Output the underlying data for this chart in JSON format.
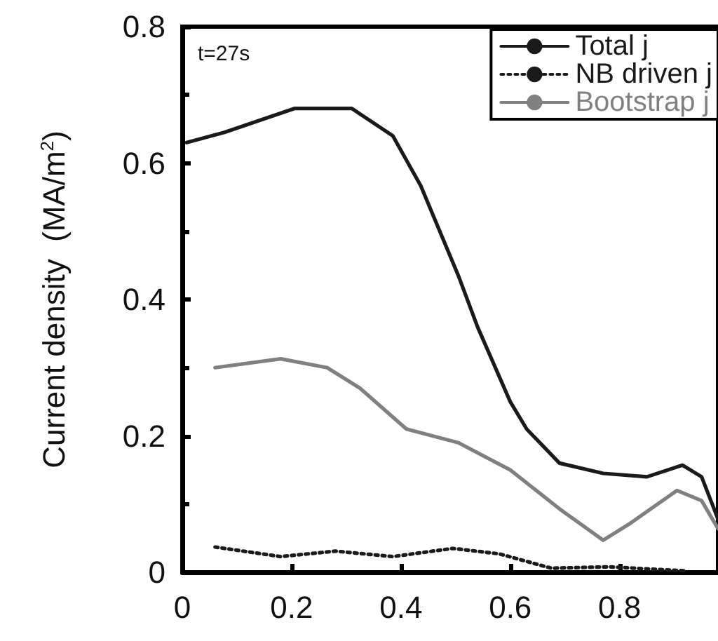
{
  "chart_data": {
    "type": "line",
    "ylabel": "Current density  (MA/m$^{2}$)",
    "xlim": [
      0,
      0.98
    ],
    "xticks": [
      0,
      0.2,
      0.4,
      0.6,
      0.8
    ],
    "ylim": [
      0,
      0.8
    ],
    "yticks": [
      0,
      0.2,
      0.4,
      0.6,
      0.8
    ],
    "legend": "top right",
    "grid": false,
    "marker": "none",
    "annotations": [
      "t=27s"
    ],
    "series": [
      {
        "name": "Total j",
        "color": "#1a1a1a",
        "line_style": "solid",
        "x": [
          0.008,
          0.077,
          0.205,
          0.31,
          0.385,
          0.436,
          0.505,
          0.54,
          0.6,
          0.63,
          0.69,
          0.77,
          0.85,
          0.915,
          0.95,
          0.98
        ],
        "values": [
          0.63,
          0.645,
          0.68,
          0.68,
          0.64,
          0.567,
          0.435,
          0.36,
          0.25,
          0.21,
          0.16,
          0.145,
          0.14,
          0.157,
          0.14,
          0.078
        ]
      },
      {
        "name": "NB driven j",
        "color": "#1a1a1a",
        "line_style": "dotted",
        "x": [
          0.06,
          0.18,
          0.28,
          0.385,
          0.495,
          0.58,
          0.675,
          0.78,
          0.92
        ],
        "values": [
          0.037,
          0.023,
          0.031,
          0.023,
          0.035,
          0.027,
          0.006,
          0.008,
          0.002
        ]
      },
      {
        "name": "Bootstrap j",
        "color": "#808080",
        "line_style": "solid",
        "x": [
          0.06,
          0.18,
          0.265,
          0.325,
          0.41,
          0.505,
          0.6,
          0.69,
          0.77,
          0.82,
          0.905,
          0.95,
          0.98
        ],
        "values": [
          0.3,
          0.313,
          0.3,
          0.27,
          0.21,
          0.19,
          0.15,
          0.093,
          0.047,
          0.072,
          0.12,
          0.105,
          0.064
        ]
      }
    ]
  }
}
